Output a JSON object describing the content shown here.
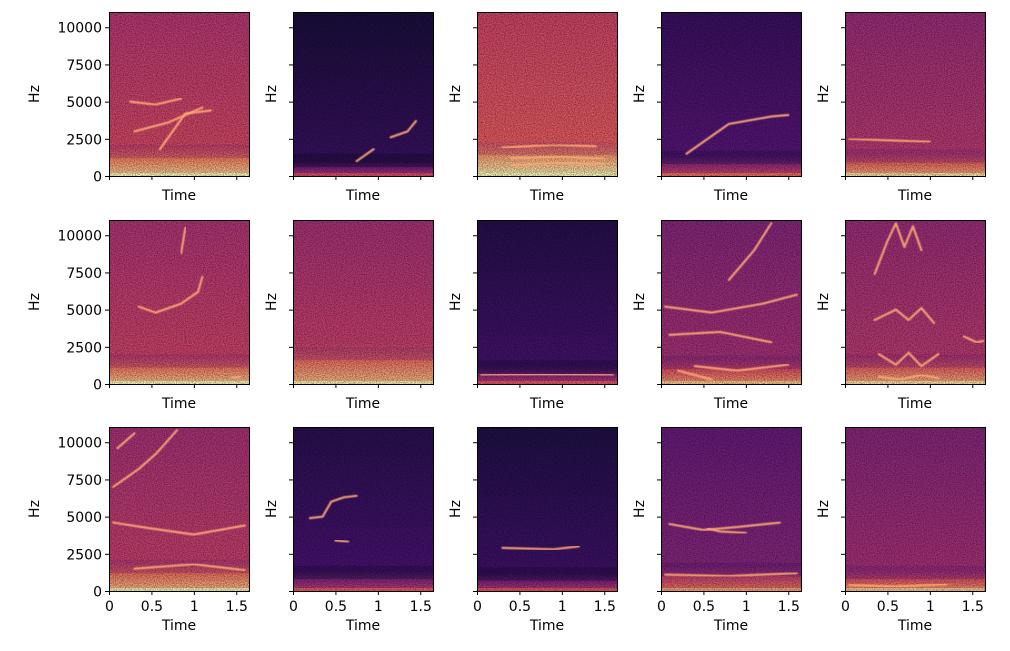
{
  "chart_data": {
    "type": "heatmap",
    "layout": "grid",
    "rows": 3,
    "cols": 5,
    "colormap": "magma",
    "xlabel": "Time",
    "ylabel": "Hz",
    "xlim": [
      0,
      1.65
    ],
    "ylim": [
      0,
      11025
    ],
    "x_ticks": [
      0,
      0.5,
      1,
      1.5
    ],
    "x_tick_labels": [
      "0",
      "0.5",
      "1",
      "1.5"
    ],
    "y_ticks": [
      0,
      2500,
      5000,
      7500,
      10000
    ],
    "y_tick_labels": [
      "0",
      "2500",
      "5000",
      "7500",
      "10000"
    ],
    "grid": false,
    "legend": "none",
    "panels": [
      {
        "row": 0,
        "col": 0,
        "intensity": 0.62,
        "low_band_hz": 1200,
        "strokes": [
          [
            [
              0.25,
              5000
            ],
            [
              0.55,
              4800
            ],
            [
              0.85,
              5200
            ]
          ],
          [
            [
              0.6,
              1800
            ],
            [
              0.9,
              4200
            ],
            [
              1.2,
              4400
            ]
          ],
          [
            [
              0.3,
              3000
            ],
            [
              0.7,
              3600
            ],
            [
              1.1,
              4600
            ]
          ]
        ]
      },
      {
        "row": 0,
        "col": 1,
        "intensity": 0.22,
        "low_band_hz": 600,
        "strokes": [
          [
            [
              1.15,
              2600
            ],
            [
              1.35,
              3000
            ],
            [
              1.45,
              3700
            ]
          ],
          [
            [
              0.75,
              1000
            ],
            [
              0.95,
              1800
            ]
          ]
        ]
      },
      {
        "row": 0,
        "col": 2,
        "intensity": 0.68,
        "low_band_hz": 1400,
        "strokes": [
          [
            [
              0.4,
              700
            ],
            [
              0.9,
              900
            ],
            [
              1.5,
              800
            ]
          ],
          [
            [
              0.4,
              1200
            ],
            [
              1.0,
              1300
            ],
            [
              1.5,
              1150
            ]
          ],
          [
            [
              0.3,
              1900
            ],
            [
              0.9,
              2100
            ],
            [
              1.4,
              2000
            ]
          ]
        ]
      },
      {
        "row": 0,
        "col": 3,
        "intensity": 0.3,
        "low_band_hz": 800,
        "strokes": [
          [
            [
              0.3,
              1500
            ],
            [
              0.8,
              3500
            ],
            [
              1.3,
              4000
            ],
            [
              1.5,
              4100
            ]
          ]
        ]
      },
      {
        "row": 0,
        "col": 4,
        "intensity": 0.55,
        "low_band_hz": 900,
        "strokes": [
          [
            [
              0.05,
              2500
            ],
            [
              0.5,
              2400
            ],
            [
              1.0,
              2300
            ]
          ]
        ]
      },
      {
        "row": 1,
        "col": 0,
        "intensity": 0.6,
        "low_band_hz": 1100,
        "strokes": [
          [
            [
              0.35,
              5200
            ],
            [
              0.55,
              4800
            ],
            [
              0.85,
              5400
            ],
            [
              1.05,
              6200
            ],
            [
              1.1,
              7200
            ]
          ],
          [
            [
              0.85,
              8800
            ],
            [
              0.9,
              10500
            ]
          ],
          [
            [
              1.45,
              400
            ],
            [
              1.55,
              500
            ]
          ]
        ]
      },
      {
        "row": 1,
        "col": 1,
        "intensity": 0.58,
        "low_band_hz": 1600,
        "strokes": []
      },
      {
        "row": 1,
        "col": 2,
        "intensity": 0.25,
        "low_band_hz": 700,
        "strokes": [
          [
            [
              0.05,
              600
            ],
            [
              0.8,
              650
            ],
            [
              1.6,
              600
            ]
          ]
        ]
      },
      {
        "row": 1,
        "col": 3,
        "intensity": 0.5,
        "low_band_hz": 1000,
        "strokes": [
          [
            [
              0.05,
              5200
            ],
            [
              0.6,
              4800
            ],
            [
              1.2,
              5400
            ],
            [
              1.6,
              6000
            ]
          ],
          [
            [
              0.1,
              3300
            ],
            [
              0.7,
              3500
            ],
            [
              1.3,
              2800
            ]
          ],
          [
            [
              0.4,
              1200
            ],
            [
              0.9,
              900
            ],
            [
              1.5,
              1300
            ]
          ],
          [
            [
              0.8,
              7000
            ],
            [
              1.1,
              9000
            ],
            [
              1.3,
              10800
            ]
          ],
          [
            [
              0.2,
              900
            ],
            [
              0.6,
              300
            ]
          ]
        ]
      },
      {
        "row": 1,
        "col": 4,
        "intensity": 0.55,
        "low_band_hz": 1100,
        "strokes": [
          [
            [
              0.35,
              7400
            ],
            [
              0.5,
              9600
            ],
            [
              0.6,
              10800
            ],
            [
              0.7,
              9200
            ],
            [
              0.8,
              10600
            ],
            [
              0.9,
              9000
            ]
          ],
          [
            [
              0.35,
              4300
            ],
            [
              0.6,
              5000
            ],
            [
              0.75,
              4300
            ],
            [
              0.9,
              5100
            ],
            [
              1.05,
              4100
            ]
          ],
          [
            [
              0.4,
              2000
            ],
            [
              0.6,
              1300
            ],
            [
              0.75,
              2100
            ],
            [
              0.9,
              1200
            ],
            [
              1.1,
              2000
            ]
          ],
          [
            [
              0.4,
              500
            ],
            [
              0.65,
              300
            ],
            [
              0.9,
              600
            ],
            [
              1.1,
              400
            ]
          ],
          [
            [
              1.4,
              3200
            ],
            [
              1.55,
              2800
            ],
            [
              1.63,
              2900
            ]
          ]
        ]
      },
      {
        "row": 2,
        "col": 0,
        "intensity": 0.58,
        "low_band_hz": 1200,
        "strokes": [
          [
            [
              0.05,
              7000
            ],
            [
              0.35,
              8200
            ],
            [
              0.55,
              9200
            ],
            [
              0.8,
              10800
            ]
          ],
          [
            [
              0.05,
              4600
            ],
            [
              0.5,
              4200
            ],
            [
              1.0,
              3800
            ],
            [
              1.6,
              4400
            ]
          ],
          [
            [
              0.3,
              1500
            ],
            [
              1.0,
              1800
            ],
            [
              1.6,
              1400
            ]
          ],
          [
            [
              0.1,
              9600
            ],
            [
              0.3,
              10600
            ]
          ]
        ]
      },
      {
        "row": 2,
        "col": 1,
        "intensity": 0.26,
        "low_band_hz": 800,
        "strokes": [
          [
            [
              0.2,
              4900
            ],
            [
              0.35,
              5000
            ],
            [
              0.45,
              6000
            ],
            [
              0.6,
              6300
            ],
            [
              0.75,
              6400
            ]
          ],
          [
            [
              0.5,
              3400
            ],
            [
              0.65,
              3300
            ]
          ]
        ]
      },
      {
        "row": 2,
        "col": 2,
        "intensity": 0.24,
        "low_band_hz": 700,
        "strokes": [
          [
            [
              0.3,
              2900
            ],
            [
              0.9,
              2800
            ],
            [
              1.2,
              3000
            ]
          ],
          [
            [
              0.05,
              500
            ],
            [
              1.6,
              500
            ]
          ]
        ]
      },
      {
        "row": 2,
        "col": 3,
        "intensity": 0.42,
        "low_band_hz": 1000,
        "strokes": [
          [
            [
              0.1,
              4500
            ],
            [
              0.5,
              4100
            ],
            [
              0.9,
              4300
            ],
            [
              1.4,
              4600
            ]
          ],
          [
            [
              0.55,
              4200
            ],
            [
              0.7,
              4000
            ],
            [
              1.0,
              3900
            ]
          ],
          [
            [
              0.05,
              1100
            ],
            [
              0.8,
              1000
            ],
            [
              1.6,
              1200
            ]
          ]
        ]
      },
      {
        "row": 2,
        "col": 4,
        "intensity": 0.5,
        "low_band_hz": 800,
        "strokes": [
          [
            [
              0.05,
              400
            ],
            [
              0.6,
              300
            ],
            [
              1.2,
              450
            ]
          ]
        ]
      }
    ]
  }
}
